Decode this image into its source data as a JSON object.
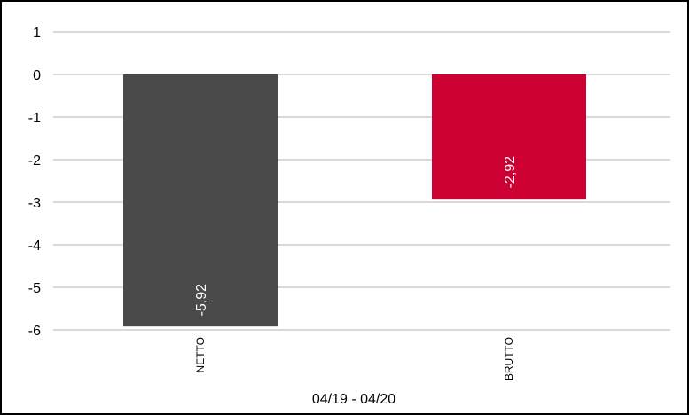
{
  "chart_data": {
    "type": "bar",
    "categories": [
      "NETTO",
      "BRUTTO"
    ],
    "values": [
      -5.92,
      -2.92
    ],
    "data_labels": [
      "-5,92",
      "-2,92"
    ],
    "bar_colors": [
      "#4a4a4a",
      "#cc0033"
    ],
    "xlabel": "04/19 - 04/20",
    "ylabel": "",
    "ylim": [
      -6,
      1
    ],
    "yticks": [
      1,
      0,
      -1,
      -2,
      -3,
      -4,
      -5,
      -6
    ],
    "ytick_labels": [
      "1",
      "0",
      "-1",
      "-2",
      "-3",
      "-4",
      "-5",
      "-6"
    ],
    "grid": true,
    "legend": "none"
  }
}
